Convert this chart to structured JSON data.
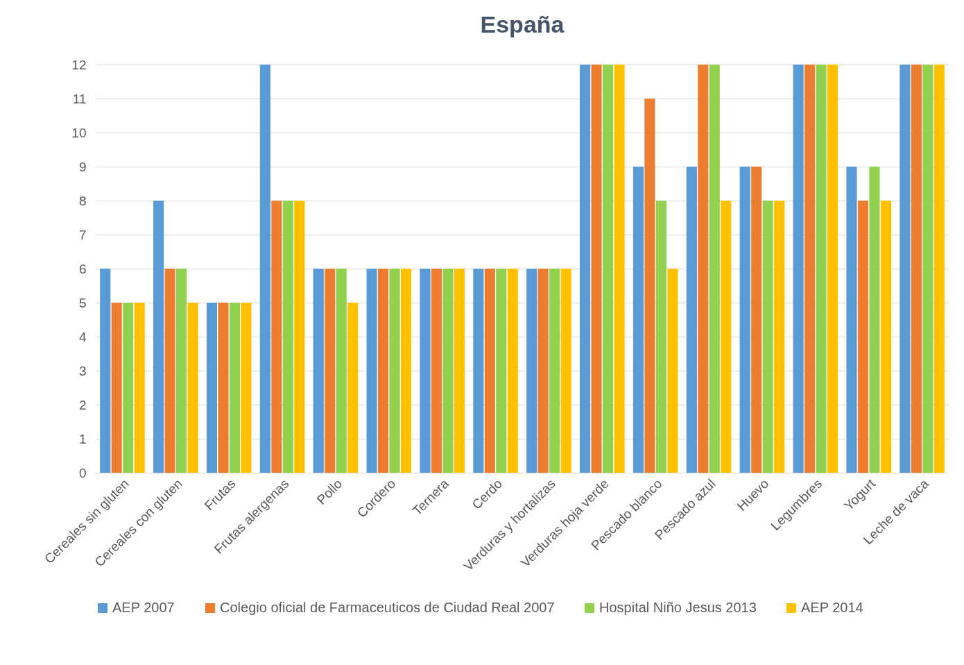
{
  "chart_data": {
    "type": "bar",
    "title": "España",
    "categories": [
      "Cereales sin gluten",
      "Cereales con gluten",
      "Frutas",
      "Frutas alergenas",
      "Pollo",
      "Cordero",
      "Ternera",
      "Cerdo",
      "Verduras y hortalizas",
      "Verduras hoja verde",
      "Pescado blanco",
      "Pescado azul",
      "Huevo",
      "Legumbres",
      "Yogurt",
      "Leche de vaca"
    ],
    "series": [
      {
        "name": "AEP 2007",
        "color": "#5b9bd5",
        "values": [
          6,
          8,
          5,
          12,
          6,
          6,
          6,
          6,
          6,
          12,
          9,
          9,
          9,
          12,
          9,
          12
        ]
      },
      {
        "name": "Colegio oficial de Farmaceuticos de Ciudad Real 2007",
        "color": "#ed7d31",
        "values": [
          5,
          6,
          5,
          8,
          6,
          6,
          6,
          6,
          6,
          12,
          11,
          12,
          9,
          12,
          8,
          12
        ]
      },
      {
        "name": "Hospital Niño Jesus 2013",
        "color": "#92d050",
        "values": [
          5,
          6,
          5,
          8,
          6,
          6,
          6,
          6,
          6,
          12,
          8,
          12,
          8,
          12,
          9,
          12
        ]
      },
      {
        "name": "AEP 2014",
        "color": "#ffc000",
        "values": [
          5,
          5,
          5,
          8,
          5,
          6,
          6,
          6,
          6,
          12,
          6,
          8,
          8,
          12,
          8,
          12
        ]
      }
    ],
    "ylim": [
      0,
      12
    ],
    "yticks": [
      0,
      1,
      2,
      3,
      4,
      5,
      6,
      7,
      8,
      9,
      10,
      11,
      12
    ],
    "grid": "y",
    "legend": "bottom"
  }
}
